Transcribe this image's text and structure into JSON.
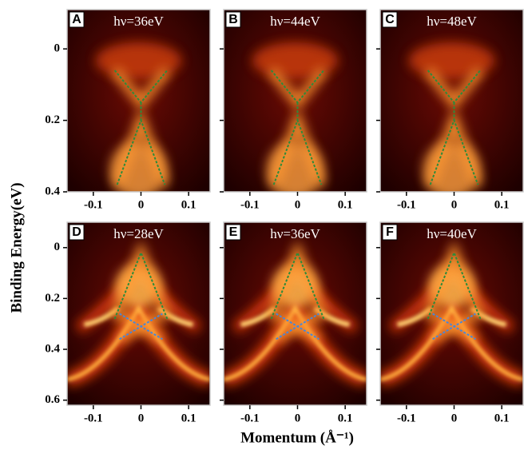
{
  "figure": {
    "xlabel": "Momentum (Å⁻¹)",
    "ylabel": "Binding Energy(eV)"
  },
  "chart_data": [
    {
      "type": "image",
      "label": "A",
      "title": "hν=36eV",
      "xlim": [
        -0.155,
        0.145
      ],
      "ylim": [
        -0.11,
        0.4
      ],
      "xticks": [
        -0.1,
        0,
        0.1
      ],
      "yticks": [
        0,
        0.2,
        0.4
      ],
      "guides": [
        {
          "color": "#2e8b3a",
          "x": [
            -0.055,
            0,
            0.055
          ],
          "y": [
            0.06,
            0.15,
            0.06
          ]
        },
        {
          "color": "#2e8b3a",
          "x": [
            0,
            0
          ],
          "y": [
            0.15,
            0.2
          ]
        },
        {
          "color": "#2e8b3a",
          "x": [
            -0.05,
            0,
            0.05
          ],
          "y": [
            0.38,
            0.2,
            0.38
          ]
        }
      ]
    },
    {
      "type": "image",
      "label": "B",
      "title": "hν=44eV",
      "xlim": [
        -0.155,
        0.145
      ],
      "ylim": [
        -0.11,
        0.4
      ],
      "xticks": [
        -0.1,
        0,
        0.1
      ],
      "yticks": [
        0,
        0.2,
        0.4
      ],
      "guides": [
        {
          "color": "#2e8b3a",
          "x": [
            -0.055,
            0,
            0.055
          ],
          "y": [
            0.06,
            0.15,
            0.06
          ]
        },
        {
          "color": "#2e8b3a",
          "x": [
            0,
            0
          ],
          "y": [
            0.15,
            0.2
          ]
        },
        {
          "color": "#2e8b3a",
          "x": [
            -0.05,
            0,
            0.05
          ],
          "y": [
            0.38,
            0.2,
            0.38
          ]
        }
      ]
    },
    {
      "type": "image",
      "label": "C",
      "title": "hν=48eV",
      "xlim": [
        -0.155,
        0.145
      ],
      "ylim": [
        -0.11,
        0.4
      ],
      "xticks": [
        -0.1,
        0,
        0.1
      ],
      "yticks": [
        0,
        0.2,
        0.4
      ],
      "guides": [
        {
          "color": "#2e8b3a",
          "x": [
            -0.055,
            0,
            0.055
          ],
          "y": [
            0.06,
            0.15,
            0.06
          ]
        },
        {
          "color": "#2e8b3a",
          "x": [
            0,
            0
          ],
          "y": [
            0.15,
            0.2
          ]
        },
        {
          "color": "#2e8b3a",
          "x": [
            -0.05,
            0,
            0.05
          ],
          "y": [
            0.38,
            0.2,
            0.38
          ]
        }
      ]
    },
    {
      "type": "image",
      "label": "D",
      "title": "hν=28eV",
      "xlim": [
        -0.155,
        0.145
      ],
      "ylim": [
        -0.1,
        0.62
      ],
      "xticks": [
        -0.1,
        0,
        0.1
      ],
      "yticks": [
        0,
        0.2,
        0.4,
        0.6
      ],
      "guides": [
        {
          "color": "#2e8b3a",
          "x": [
            -0.055,
            0,
            0.055
          ],
          "y": [
            0.28,
            0.02,
            0.28
          ]
        },
        {
          "color": "#4a86d8",
          "x": [
            -0.045,
            0.045
          ],
          "y": [
            0.26,
            0.36
          ]
        },
        {
          "color": "#4a86d8",
          "x": [
            -0.045,
            0.045
          ],
          "y": [
            0.36,
            0.26
          ]
        }
      ]
    },
    {
      "type": "image",
      "label": "E",
      "title": "hν=36eV",
      "xlim": [
        -0.155,
        0.145
      ],
      "ylim": [
        -0.1,
        0.62
      ],
      "xticks": [
        -0.1,
        0,
        0.1
      ],
      "yticks": [
        0,
        0.2,
        0.4,
        0.6
      ],
      "guides": [
        {
          "color": "#2e8b3a",
          "x": [
            -0.055,
            0,
            0.055
          ],
          "y": [
            0.28,
            0.02,
            0.28
          ]
        },
        {
          "color": "#4a86d8",
          "x": [
            -0.045,
            0.045
          ],
          "y": [
            0.26,
            0.36
          ]
        },
        {
          "color": "#4a86d8",
          "x": [
            -0.045,
            0.045
          ],
          "y": [
            0.36,
            0.26
          ]
        }
      ]
    },
    {
      "type": "image",
      "label": "F",
      "title": "hν=40eV",
      "xlim": [
        -0.155,
        0.145
      ],
      "ylim": [
        -0.1,
        0.62
      ],
      "xticks": [
        -0.1,
        0,
        0.1
      ],
      "yticks": [
        0,
        0.2,
        0.4,
        0.6
      ],
      "guides": [
        {
          "color": "#2e8b3a",
          "x": [
            -0.055,
            0,
            0.055
          ],
          "y": [
            0.28,
            0.02,
            0.28
          ]
        },
        {
          "color": "#4a86d8",
          "x": [
            -0.045,
            0.045
          ],
          "y": [
            0.26,
            0.36
          ]
        },
        {
          "color": "#4a86d8",
          "x": [
            -0.045,
            0.045
          ],
          "y": [
            0.36,
            0.26
          ]
        }
      ]
    }
  ]
}
